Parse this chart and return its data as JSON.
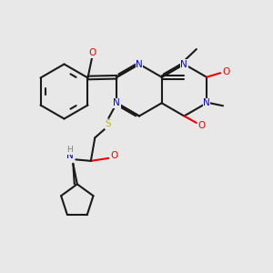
{
  "bg_color": "#e8e8e8",
  "bond_color": "#1a1a1a",
  "N_color": "#0000ee",
  "O_color": "#ee0000",
  "S_color": "#bbbb00",
  "H_color": "#5f8a8b",
  "lw": 1.5,
  "figsize": [
    3.0,
    3.0
  ],
  "dpi": 100,
  "xlim": [
    0,
    10
  ],
  "ylim": [
    0,
    10
  ]
}
